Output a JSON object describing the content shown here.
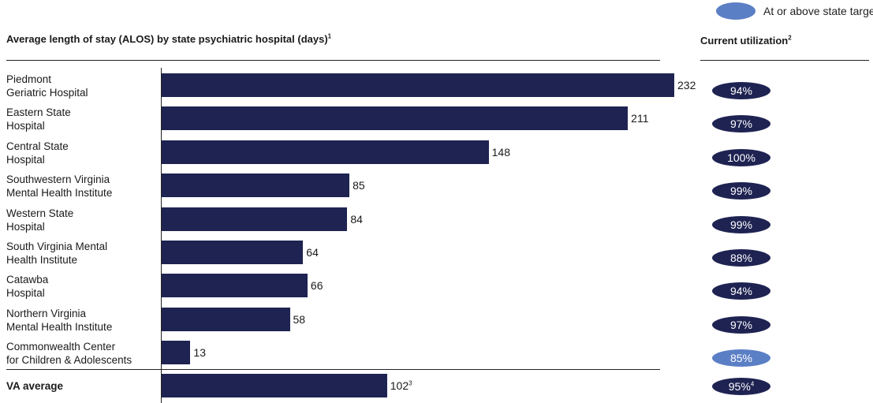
{
  "legend": {
    "label": "At or above state target",
    "color": "#5b7fc5"
  },
  "chart_title": "Average length of stay (ALOS) by state psychiatric hospital (days)",
  "chart_title_note": "1",
  "util_title": "Current utilization",
  "util_title_note": "2",
  "colors": {
    "bar": "#1e2352",
    "pill_default": "#1e2352",
    "pill_target": "#5b7fc5"
  },
  "chart_data": {
    "type": "bar",
    "orientation": "horizontal",
    "title": "Average length of stay (ALOS) by state psychiatric hospital (days)",
    "categories": [
      "Piedmont\nGeriatric  Hospital",
      "Eastern State\nHospital",
      "Central State\nHospital",
      "Southwestern Virginia\nMental Health Institute",
      "Western State\nHospital",
      "South Virginia Mental\nHealth Institute",
      "Catawba\nHospital",
      "Northern Virginia\nMental Health Institute",
      "Commonwealth Center\nfor Children & Adolescents"
    ],
    "values": [
      232,
      211,
      148,
      85,
      84,
      64,
      66,
      58,
      13
    ],
    "xlim": [
      0,
      232
    ],
    "average": {
      "label": "VA average",
      "value": 102,
      "note": "3"
    },
    "utilization": {
      "title": "Current utilization",
      "values": [
        "94%",
        "97%",
        "100%",
        "99%",
        "99%",
        "88%",
        "94%",
        "97%",
        "85%"
      ],
      "at_or_above_target": [
        false,
        false,
        false,
        false,
        false,
        false,
        false,
        false,
        true
      ],
      "average": "95%",
      "average_note": "4"
    }
  }
}
